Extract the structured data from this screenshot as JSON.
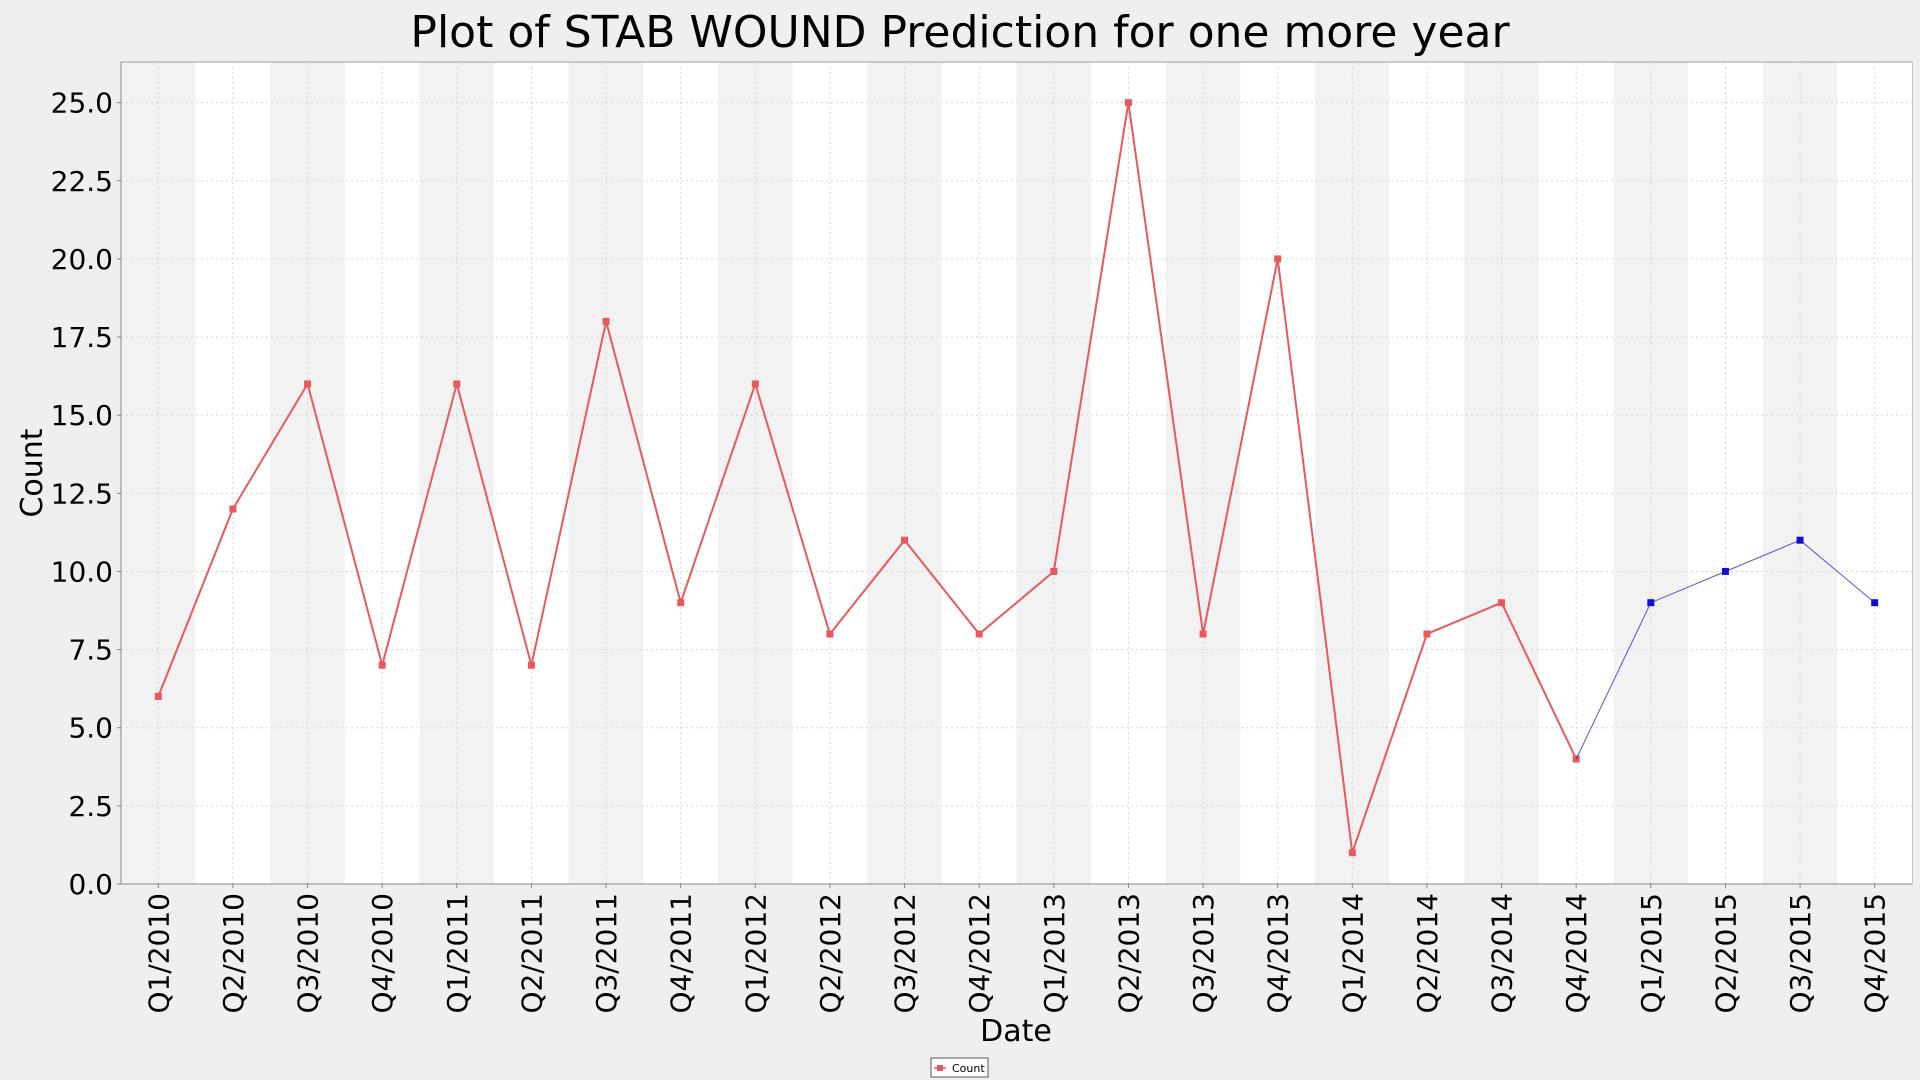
{
  "chart_data": {
    "type": "line",
    "title": "Plot of STAB WOUND Prediction for one more year",
    "xlabel": "Date",
    "ylabel": "Count",
    "ylim": [
      0,
      26.3
    ],
    "yticks": [
      "0.0",
      "2.5",
      "5.0",
      "7.5",
      "10.0",
      "12.5",
      "15.0",
      "17.5",
      "20.0",
      "22.5",
      "25.0"
    ],
    "grid": true,
    "legend": {
      "position": "bottom-center",
      "entries": [
        "Count"
      ]
    },
    "categories": [
      "Q1/2010",
      "Q2/2010",
      "Q3/2010",
      "Q4/2010",
      "Q1/2011",
      "Q2/2011",
      "Q3/2011",
      "Q4/2011",
      "Q1/2012",
      "Q2/2012",
      "Q3/2012",
      "Q4/2012",
      "Q1/2013",
      "Q2/2013",
      "Q3/2013",
      "Q4/2013",
      "Q1/2014",
      "Q2/2014",
      "Q3/2014",
      "Q4/2014",
      "Q1/2015",
      "Q2/2015",
      "Q3/2015",
      "Q4/2015"
    ],
    "series": [
      {
        "name": "Count",
        "color": "#e8595d",
        "x": [
          "Q1/2010",
          "Q2/2010",
          "Q3/2010",
          "Q4/2010",
          "Q1/2011",
          "Q2/2011",
          "Q3/2011",
          "Q4/2011",
          "Q1/2012",
          "Q2/2012",
          "Q3/2012",
          "Q4/2012",
          "Q1/2013",
          "Q2/2013",
          "Q3/2013",
          "Q4/2013",
          "Q1/2014",
          "Q2/2014",
          "Q3/2014",
          "Q4/2014"
        ],
        "values": [
          6,
          12,
          16,
          7,
          16,
          7,
          18,
          9,
          16,
          8,
          11,
          8,
          10,
          25,
          8,
          20,
          1,
          8,
          9,
          4
        ]
      },
      {
        "color": "#1010cc",
        "x": [
          "Q4/2014",
          "Q1/2015",
          "Q2/2015",
          "Q3/2015",
          "Q4/2015"
        ],
        "values": [
          4,
          9,
          10,
          11,
          9
        ]
      }
    ],
    "colors": {
      "background": "#efefef",
      "plot_band_dark": "#f2f2f2",
      "plot_band_light": "#ffffff",
      "gridline": "#d6d6d6",
      "axis": "#888888"
    }
  }
}
